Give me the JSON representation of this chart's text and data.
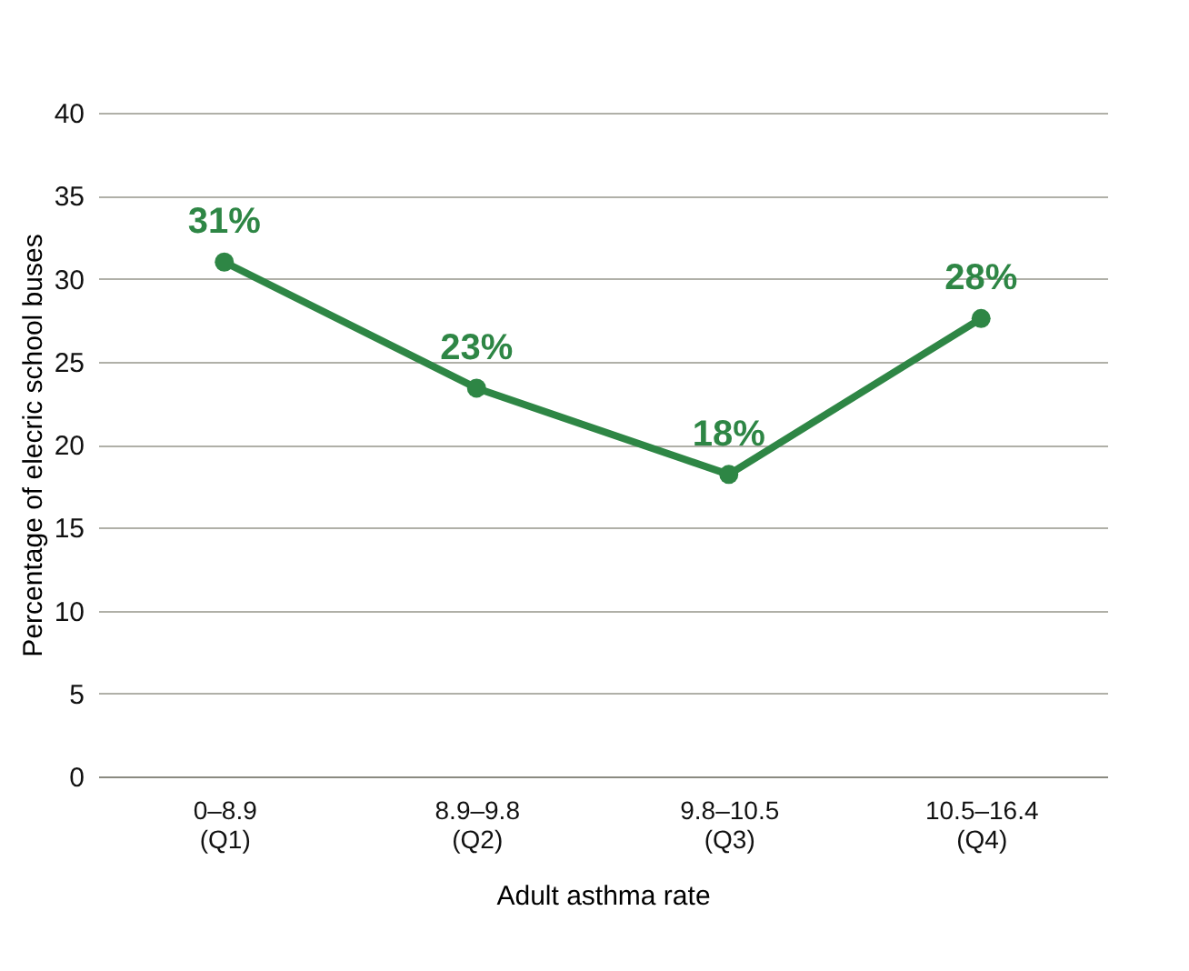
{
  "chart_data": {
    "type": "line",
    "categories": [
      "0–8.9\n(Q1)",
      "8.9–9.8\n(Q2)",
      "9.8–10.5\n(Q3)",
      "10.5–16.4\n(Q4)"
    ],
    "series": [
      {
        "color": "#2e8645",
        "values": [
          31,
          23.4,
          18.2,
          27.6
        ],
        "value_labels": [
          "31%",
          "23%",
          "18%",
          "28%"
        ]
      }
    ],
    "xlabel": "Adult asthma rate",
    "ylabel": "Percentage of elecric school buses",
    "ylim": [
      0,
      40
    ],
    "yticks": [
      0,
      5,
      10,
      15,
      20,
      25,
      30,
      35,
      40
    ],
    "grid": "y",
    "marker": "circle",
    "line_style": "solid",
    "legend": false
  }
}
